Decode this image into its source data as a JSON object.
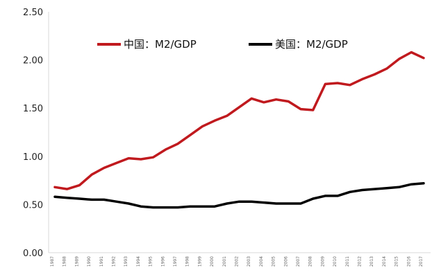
{
  "chart_data": {
    "type": "line",
    "title": "",
    "xlabel": "",
    "ylabel": "",
    "ylim": [
      0,
      2.5
    ],
    "yticks": [
      "0.00",
      "0.50",
      "1.00",
      "1.50",
      "2.00",
      "2.50"
    ],
    "x": [
      "1987",
      "1988",
      "1989",
      "1990",
      "1991",
      "1992",
      "1993",
      "1994",
      "1995",
      "1996",
      "1997",
      "1998",
      "1999",
      "2000",
      "2001",
      "2002",
      "2003",
      "2004",
      "2005",
      "2006",
      "2007",
      "2008",
      "2009",
      "2010",
      "2011",
      "2012",
      "2013",
      "2014",
      "2015",
      "2016",
      "2017"
    ],
    "grid": false,
    "legend_position": "top",
    "series": [
      {
        "name": "中国：M2/GDP",
        "color": "#c0191e",
        "values": [
          0.68,
          0.66,
          0.7,
          0.81,
          0.88,
          0.93,
          0.98,
          0.97,
          0.99,
          1.07,
          1.13,
          1.22,
          1.31,
          1.37,
          1.42,
          1.51,
          1.6,
          1.56,
          1.59,
          1.57,
          1.49,
          1.48,
          1.75,
          1.76,
          1.74,
          1.8,
          1.85,
          1.91,
          2.01,
          2.08,
          2.02
        ]
      },
      {
        "name": "美国：M2/GDP",
        "color": "#000000",
        "values": [
          0.58,
          0.57,
          0.56,
          0.55,
          0.55,
          0.53,
          0.51,
          0.48,
          0.47,
          0.47,
          0.47,
          0.48,
          0.48,
          0.48,
          0.51,
          0.53,
          0.53,
          0.52,
          0.51,
          0.51,
          0.51,
          0.56,
          0.59,
          0.59,
          0.63,
          0.65,
          0.66,
          0.67,
          0.68,
          0.71,
          0.72
        ]
      }
    ]
  }
}
